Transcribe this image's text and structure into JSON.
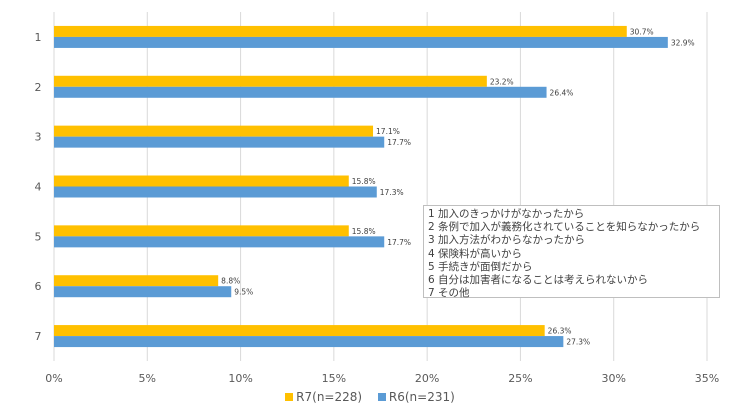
{
  "chart_data": {
    "type": "bar",
    "orientation": "horizontal",
    "categories": [
      "1",
      "2",
      "3",
      "4",
      "5",
      "6",
      "7"
    ],
    "series": [
      {
        "name": "R7(n=228)",
        "color": "#FFC000",
        "values": [
          30.7,
          23.2,
          17.1,
          15.8,
          15.8,
          8.8,
          26.3
        ],
        "labels": [
          "30.7%",
          "23.2%",
          "17.1%",
          "15.8%",
          "15.8%",
          "8.8%",
          "26.3%"
        ]
      },
      {
        "name": "R6(n=231)",
        "color": "#5B9BD5",
        "values": [
          32.9,
          26.4,
          17.7,
          17.3,
          17.7,
          9.5,
          27.3
        ],
        "labels": [
          "32.9%",
          "26.4%",
          "17.7%",
          "17.3%",
          "17.7%",
          "9.5%",
          "27.3%"
        ]
      }
    ],
    "xlim": [
      0,
      35
    ],
    "xticks": [
      "0%",
      "5%",
      "10%",
      "15%",
      "20%",
      "25%",
      "30%",
      "35%"
    ],
    "grid": true,
    "legend_placement": "bottom",
    "notes": [
      "1 加入のきっかけがなかったから",
      "2 条例で加入が義務化されていることを知らなかったから",
      "3 加入方法がわからなかったから",
      "4 保険料が高いから",
      "5 手続きが面倒だから",
      "6 自分は加害者になることは考えられないから",
      "7 その他"
    ]
  }
}
